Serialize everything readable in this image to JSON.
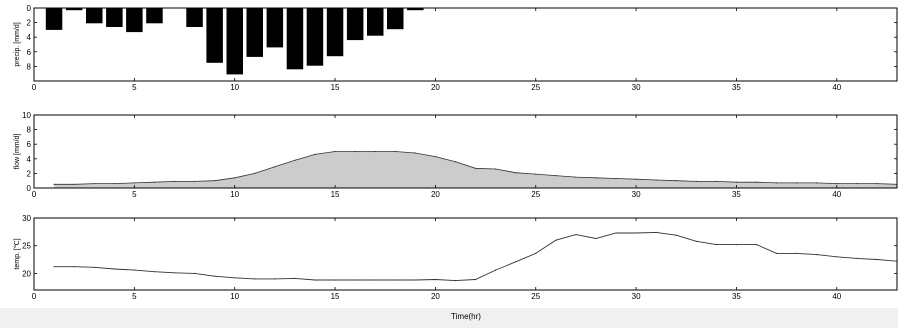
{
  "x_axis_label": "Time(hr)",
  "chart_data": [
    {
      "type": "bar",
      "ylabel": "precip. [mm/d]",
      "y_inverted": true,
      "xlim": [
        0,
        43
      ],
      "ylim": [
        0,
        10
      ],
      "xticks": [
        0,
        5,
        10,
        15,
        20,
        25,
        30,
        35,
        40
      ],
      "yticks": [
        0,
        2,
        4,
        6,
        8
      ],
      "bar_color": "#000000",
      "x": [
        1,
        2,
        3,
        4,
        5,
        6,
        8,
        9,
        10,
        11,
        12,
        13,
        14,
        15,
        16,
        17,
        18,
        19
      ],
      "values": [
        3.0,
        0.3,
        2.1,
        2.6,
        3.3,
        2.1,
        2.6,
        7.5,
        9.1,
        6.7,
        5.4,
        8.4,
        7.9,
        6.6,
        4.4,
        3.8,
        2.9,
        0.3
      ]
    },
    {
      "type": "area",
      "ylabel": "flow [mm/d]",
      "xlim": [
        0,
        43
      ],
      "ylim": [
        0,
        10
      ],
      "xticks": [
        0,
        5,
        10,
        15,
        20,
        25,
        30,
        35,
        40
      ],
      "yticks": [
        0,
        2,
        4,
        6,
        8,
        10
      ],
      "fill_color": "#cccccc",
      "line_color": "#333333",
      "x": [
        1,
        2,
        3,
        4,
        5,
        6,
        7,
        8,
        9,
        10,
        11,
        12,
        13,
        14,
        15,
        16,
        17,
        18,
        19,
        20,
        21,
        22,
        23,
        24,
        25,
        26,
        27,
        28,
        29,
        30,
        31,
        32,
        33,
        34,
        35,
        36,
        37,
        38,
        39,
        40,
        41,
        42,
        43
      ],
      "values": [
        0.5,
        0.5,
        0.6,
        0.6,
        0.7,
        0.8,
        0.9,
        0.9,
        1.0,
        1.4,
        2.0,
        2.9,
        3.8,
        4.6,
        5.0,
        5.0,
        5.0,
        5.0,
        4.8,
        4.3,
        3.6,
        2.7,
        2.6,
        2.1,
        1.9,
        1.7,
        1.5,
        1.4,
        1.3,
        1.2,
        1.1,
        1.0,
        0.9,
        0.9,
        0.8,
        0.8,
        0.7,
        0.7,
        0.7,
        0.6,
        0.6,
        0.6,
        0.5
      ]
    },
    {
      "type": "line",
      "ylabel": "temp. [℃]",
      "xlim": [
        0,
        43
      ],
      "ylim": [
        17,
        30
      ],
      "xticks": [
        0,
        5,
        10,
        15,
        20,
        25,
        30,
        35,
        40
      ],
      "yticks": [
        20,
        25,
        30
      ],
      "line_color": "#333333",
      "x": [
        1,
        2,
        3,
        4,
        5,
        6,
        7,
        8,
        9,
        10,
        11,
        12,
        13,
        14,
        15,
        16,
        17,
        18,
        19,
        20,
        21,
        22,
        23,
        24,
        25,
        26,
        27,
        28,
        29,
        30,
        31,
        32,
        33,
        34,
        35,
        36,
        37,
        38,
        39,
        40,
        41,
        42,
        43
      ],
      "values": [
        21.2,
        21.2,
        21.1,
        20.8,
        20.6,
        20.3,
        20.1,
        20.0,
        19.5,
        19.2,
        19.0,
        19.0,
        19.1,
        18.8,
        18.8,
        18.8,
        18.8,
        18.8,
        18.8,
        18.9,
        18.7,
        18.9,
        20.6,
        22.1,
        23.6,
        26.0,
        27.0,
        26.3,
        27.3,
        27.3,
        27.4,
        26.9,
        25.8,
        25.2,
        25.2,
        25.2,
        23.6,
        23.6,
        23.4,
        23.0,
        22.7,
        22.5,
        22.2
      ]
    }
  ]
}
